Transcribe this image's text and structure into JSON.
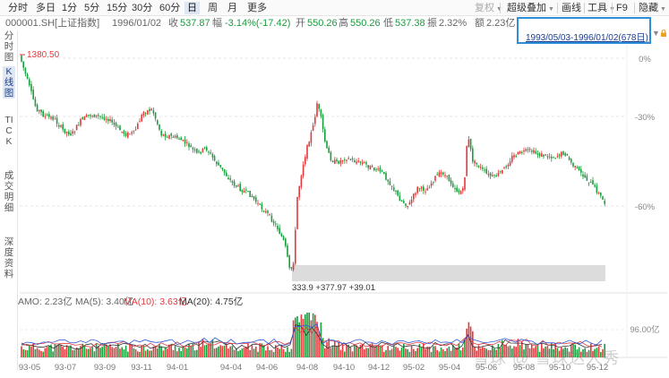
{
  "toolbar": {
    "periods": [
      {
        "label": "分时",
        "active": false
      },
      {
        "label": "多日",
        "active": false
      },
      {
        "label": "1分",
        "active": false
      },
      {
        "label": "5分",
        "active": false
      },
      {
        "label": "15分",
        "active": false
      },
      {
        "label": "30分",
        "active": false
      },
      {
        "label": "60分",
        "active": false
      },
      {
        "label": "日",
        "active": true
      },
      {
        "label": "周",
        "active": false
      },
      {
        "label": "月",
        "active": false
      },
      {
        "label": "更多",
        "active": false
      }
    ],
    "fuquan": "复权",
    "overlay": "超级叠加",
    "draw": "画线",
    "tools": "工具",
    "f9": "F9",
    "hide": "隐藏"
  },
  "info": {
    "code": "000001.SH[上证指数]",
    "date": "1996/01/02",
    "close_label": "收",
    "close": "537.87",
    "change_label": "幅",
    "change": "-3.14%(-17.42)",
    "open_label": "开",
    "open": "550.26",
    "high_label": "高",
    "high": "550.26",
    "low_label": "低",
    "low": "537.38",
    "amp_label": "振",
    "amp": "2.32%",
    "amount_label": "额",
    "amount": "2.23亿"
  },
  "sidebar": {
    "items": [
      {
        "label": "分时图",
        "active": false
      },
      {
        "label": "K线图",
        "active": true
      },
      {
        "label": "TICK",
        "active": false
      },
      {
        "label": "成交明细",
        "active": false
      },
      {
        "label": "深度资料",
        "active": false
      }
    ]
  },
  "range": {
    "text": "1993/05/03-1996/01/02(678日)"
  },
  "main": {
    "max_label": "1380.50",
    "low_note": "333.9 +377.97  +39.01",
    "pct_labels": [
      "0%",
      "-30%",
      "-60%"
    ]
  },
  "amo": {
    "label": "AMO: 2.23亿",
    "ma5": "MA(5): 3.40亿",
    "ma10": "MA(10): 3.63亿",
    "ma20": "MA(20): 4.75亿",
    "scale": "96.00亿",
    "colors": {
      "ma5": "#333333",
      "ma10": "#e4393c",
      "ma20": "#2e5bd8"
    }
  },
  "xaxis": [
    "93-05",
    "93-07",
    "93-09",
    "93-11",
    "94-01",
    "94-04",
    "94-06",
    "94-08",
    "94-10",
    "94-12",
    "95-02",
    "95-04",
    "95-06",
    "95-08",
    "95-10",
    "95-12"
  ],
  "watermark": "雪球 @ 雪球达人秀",
  "colors": {
    "up": "#e4393c",
    "down": "#1a9d3c",
    "accent": "#2e8fd8"
  }
}
